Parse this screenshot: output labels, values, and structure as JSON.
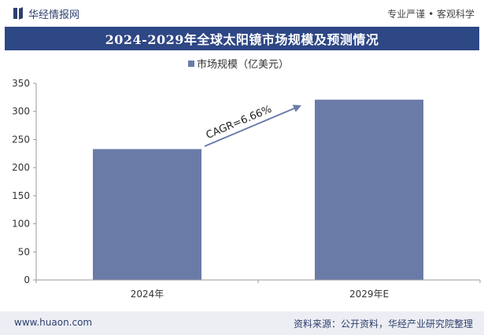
{
  "header": {
    "brand_name": "华经情报网",
    "slogan": "专业严谨 • 客观科学"
  },
  "chart_data": {
    "type": "bar",
    "title": "2024-2029年全球太阳镜市场规模及预测情况",
    "categories": [
      "2024年",
      "2029年E"
    ],
    "series": [
      {
        "name": "市场规模（亿美元）",
        "values": [
          233,
          321
        ]
      }
    ],
    "ylim": [
      0,
      350
    ],
    "yticks": [
      0,
      50,
      100,
      150,
      200,
      250,
      300,
      350
    ],
    "legend_position": "top-center",
    "grid": false,
    "annotation": "CAGR=6.66%",
    "bar_color": "#6b7ba8"
  },
  "footer": {
    "website": "www.huaon.com",
    "source": "资料来源：公开资料，华经产业研究院整理"
  }
}
